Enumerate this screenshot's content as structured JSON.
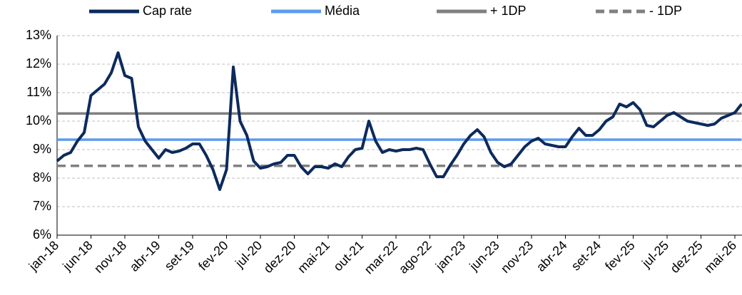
{
  "chart_data": {
    "type": "line",
    "categories": [
      "jan-18",
      null,
      null,
      null,
      null,
      "jun-18",
      null,
      null,
      null,
      null,
      "nov-18",
      null,
      null,
      null,
      null,
      "abr-19",
      null,
      null,
      null,
      null,
      "set-19",
      null,
      null,
      null,
      null,
      "fev-20",
      null,
      null,
      null,
      null,
      "jul-20",
      null,
      null,
      null,
      null,
      "dez-20",
      null,
      null,
      null,
      null,
      "mai-21",
      null,
      null,
      null,
      null,
      "out-21",
      null,
      null,
      null,
      null,
      "mar-22",
      null,
      null,
      null,
      null,
      "ago-22",
      null,
      null,
      null,
      null,
      "jan-23",
      null,
      null,
      null,
      null,
      "jun-23",
      null,
      null,
      null,
      null,
      "nov-23",
      null,
      null,
      null,
      null,
      "abr-24",
      null,
      null,
      null,
      null,
      "set-24",
      null,
      null,
      null,
      null,
      "fev-25",
      null,
      null,
      null,
      null,
      "jul-25",
      null,
      null,
      null,
      null,
      "dez-25",
      null,
      null,
      null,
      null,
      "mai-26",
      null
    ],
    "series": [
      {
        "name": "Cap rate",
        "color": "#0d2a5c",
        "dashed": false,
        "values": [
          8.6,
          8.8,
          8.9,
          9.3,
          9.6,
          10.9,
          11.1,
          11.3,
          11.7,
          12.4,
          11.6,
          11.5,
          9.8,
          9.3,
          9.0,
          8.7,
          9.0,
          8.9,
          8.95,
          9.05,
          9.2,
          9.2,
          8.8,
          8.3,
          7.6,
          8.3,
          11.9,
          10.0,
          9.5,
          8.6,
          8.35,
          8.4,
          8.5,
          8.55,
          8.8,
          8.8,
          8.4,
          8.15,
          8.4,
          8.4,
          8.35,
          8.5,
          8.4,
          8.75,
          9.0,
          9.05,
          10.0,
          9.3,
          8.9,
          9.0,
          8.95,
          9.0,
          9.0,
          9.05,
          9.0,
          8.5,
          8.05,
          8.05,
          8.45,
          8.8,
          9.2,
          9.5,
          9.7,
          9.45,
          8.9,
          8.55,
          8.4,
          8.5,
          8.8,
          9.1,
          9.3,
          9.4,
          9.2,
          9.15,
          9.1,
          9.1,
          9.45,
          9.75,
          9.5,
          9.5,
          9.7,
          10.0,
          10.15,
          10.6,
          10.5,
          10.65,
          10.4,
          9.85,
          9.8,
          10.0,
          10.2,
          10.3,
          10.15,
          10.0,
          9.95,
          9.9,
          9.85,
          9.9,
          10.1,
          10.2,
          10.3,
          10.6
        ]
      },
      {
        "name": "Média",
        "color": "#5b9bef",
        "dashed": false,
        "values": [
          9.35,
          9.35,
          9.35,
          9.35,
          9.35,
          9.35,
          9.35,
          9.35,
          9.35,
          9.35,
          9.35,
          9.35,
          9.35,
          9.35,
          9.35,
          9.35,
          9.35,
          9.35,
          9.35,
          9.35,
          9.35,
          9.35,
          9.35,
          9.35,
          9.35,
          9.35,
          9.35,
          9.35,
          9.35,
          9.35,
          9.35,
          9.35,
          9.35,
          9.35,
          9.35,
          9.35,
          9.35,
          9.35,
          9.35,
          9.35,
          9.35,
          9.35,
          9.35,
          9.35,
          9.35,
          9.35,
          9.35,
          9.35,
          9.35,
          9.35,
          9.35,
          9.35,
          9.35,
          9.35,
          9.35,
          9.35,
          9.35,
          9.35,
          9.35,
          9.35,
          9.35,
          9.35,
          9.35,
          9.35,
          9.35,
          9.35,
          9.35,
          9.35,
          9.35,
          9.35,
          9.35,
          9.35,
          9.35,
          9.35,
          9.35,
          9.35,
          9.35,
          9.35,
          9.35,
          9.35,
          9.35,
          9.35,
          9.35,
          9.35,
          9.35,
          9.35,
          9.35,
          9.35,
          9.35,
          9.35,
          9.35,
          9.35,
          9.35,
          9.35,
          9.35,
          9.35,
          9.35,
          9.35,
          9.35,
          9.35,
          9.35,
          9.35
        ]
      },
      {
        "name": "+ 1DP",
        "color": "#808080",
        "dashed": false,
        "values": [
          10.27,
          10.27,
          10.27,
          10.27,
          10.27,
          10.27,
          10.27,
          10.27,
          10.27,
          10.27,
          10.27,
          10.27,
          10.27,
          10.27,
          10.27,
          10.27,
          10.27,
          10.27,
          10.27,
          10.27,
          10.27,
          10.27,
          10.27,
          10.27,
          10.27,
          10.27,
          10.27,
          10.27,
          10.27,
          10.27,
          10.27,
          10.27,
          10.27,
          10.27,
          10.27,
          10.27,
          10.27,
          10.27,
          10.27,
          10.27,
          10.27,
          10.27,
          10.27,
          10.27,
          10.27,
          10.27,
          10.27,
          10.27,
          10.27,
          10.27,
          10.27,
          10.27,
          10.27,
          10.27,
          10.27,
          10.27,
          10.27,
          10.27,
          10.27,
          10.27,
          10.27,
          10.27,
          10.27,
          10.27,
          10.27,
          10.27,
          10.27,
          10.27,
          10.27,
          10.27,
          10.27,
          10.27,
          10.27,
          10.27,
          10.27,
          10.27,
          10.27,
          10.27,
          10.27,
          10.27,
          10.27,
          10.27,
          10.27,
          10.27,
          10.27,
          10.27,
          10.27,
          10.27,
          10.27,
          10.27,
          10.27,
          10.27,
          10.27,
          10.27,
          10.27,
          10.27,
          10.27,
          10.27,
          10.27,
          10.27,
          10.27,
          10.27
        ]
      },
      {
        "name": "- 1DP",
        "color": "#808080",
        "dashed": true,
        "values": [
          8.43,
          8.43,
          8.43,
          8.43,
          8.43,
          8.43,
          8.43,
          8.43,
          8.43,
          8.43,
          8.43,
          8.43,
          8.43,
          8.43,
          8.43,
          8.43,
          8.43,
          8.43,
          8.43,
          8.43,
          8.43,
          8.43,
          8.43,
          8.43,
          8.43,
          8.43,
          8.43,
          8.43,
          8.43,
          8.43,
          8.43,
          8.43,
          8.43,
          8.43,
          8.43,
          8.43,
          8.43,
          8.43,
          8.43,
          8.43,
          8.43,
          8.43,
          8.43,
          8.43,
          8.43,
          8.43,
          8.43,
          8.43,
          8.43,
          8.43,
          8.43,
          8.43,
          8.43,
          8.43,
          8.43,
          8.43,
          8.43,
          8.43,
          8.43,
          8.43,
          8.43,
          8.43,
          8.43,
          8.43,
          8.43,
          8.43,
          8.43,
          8.43,
          8.43,
          8.43,
          8.43,
          8.43,
          8.43,
          8.43,
          8.43,
          8.43,
          8.43,
          8.43,
          8.43,
          8.43,
          8.43,
          8.43,
          8.43,
          8.43,
          8.43,
          8.43,
          8.43,
          8.43,
          8.43,
          8.43,
          8.43,
          8.43,
          8.43,
          8.43,
          8.43,
          8.43,
          8.43,
          8.43,
          8.43,
          8.43,
          8.43,
          8.43
        ]
      }
    ],
    "ylim": [
      6,
      13
    ],
    "yticks": [
      {
        "value": 6,
        "label": "6%"
      },
      {
        "value": 7,
        "label": "7%"
      },
      {
        "value": 8,
        "label": "8%"
      },
      {
        "value": 9,
        "label": "9%"
      },
      {
        "value": 10,
        "label": "10%"
      },
      {
        "value": 11,
        "label": "11%"
      },
      {
        "value": 12,
        "label": "12%"
      },
      {
        "value": 13,
        "label": "13%"
      }
    ],
    "grid": true,
    "legend": "top"
  }
}
